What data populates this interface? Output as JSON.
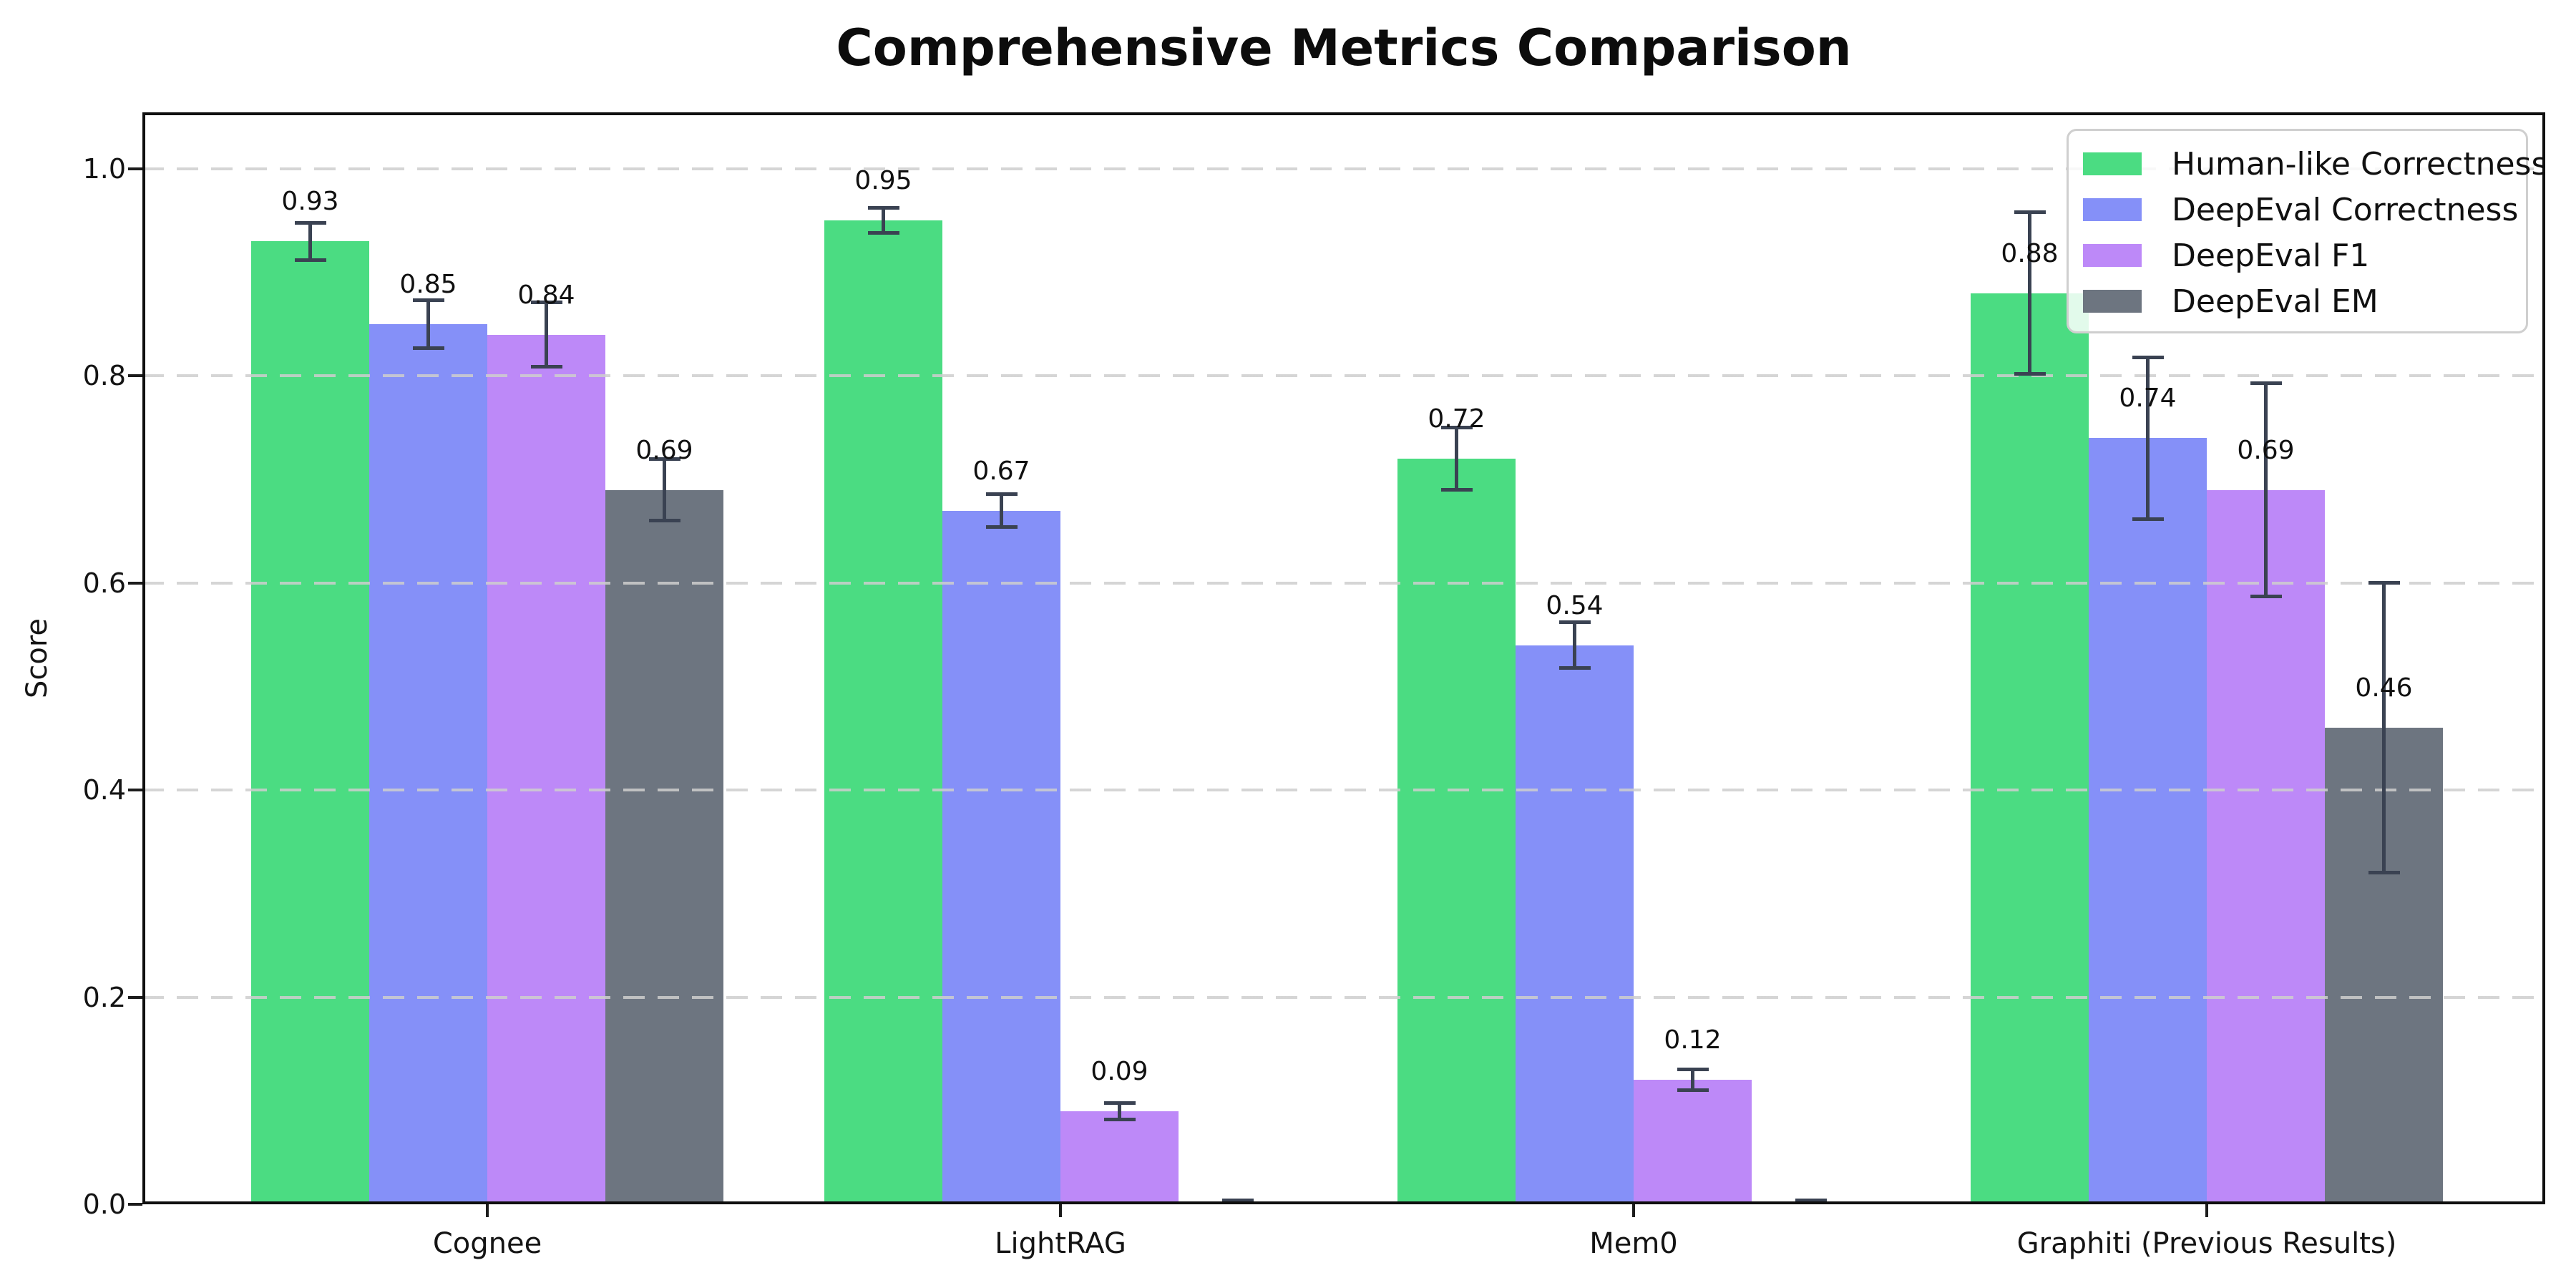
{
  "chart_data": {
    "type": "bar",
    "title": "Comprehensive Metrics Comparison",
    "xlabel": "",
    "ylabel": "Score",
    "ylim": [
      0,
      1.05
    ],
    "yticks": [
      0.0,
      0.2,
      0.4,
      0.6,
      0.8,
      1.0
    ],
    "grid": "horizontal dashed",
    "legend_position": "upper right",
    "categories": [
      "Cognee",
      "LightRAG",
      "Mem0",
      "Graphiti (Previous Results)"
    ],
    "series": [
      {
        "name": "Human-like Correctness",
        "color": "#4bdc82",
        "values": [
          0.93,
          0.95,
          0.72,
          0.88
        ],
        "errors": [
          0.018,
          0.012,
          0.03,
          0.078
        ],
        "bar_labels": [
          "0.93",
          "0.95",
          "0.72",
          "0.88"
        ]
      },
      {
        "name": "DeepEval Correctness",
        "color": "#8590f8",
        "values": [
          0.85,
          0.67,
          0.54,
          0.74
        ],
        "errors": [
          0.023,
          0.016,
          0.022,
          0.078
        ],
        "bar_labels": [
          "0.85",
          "0.67",
          "0.54",
          "0.74"
        ]
      },
      {
        "name": "DeepEval F1",
        "color": "#bd89f8",
        "values": [
          0.84,
          0.09,
          0.12,
          0.69
        ],
        "errors": [
          0.031,
          0.008,
          0.01,
          0.103
        ],
        "bar_labels": [
          "0.84",
          "0.09",
          "0.12",
          "0.69"
        ]
      },
      {
        "name": "DeepEval EM",
        "color": "#6d7580",
        "values": [
          0.69,
          0.0,
          0.0,
          0.46
        ],
        "errors": [
          0.03,
          0.004,
          0.004,
          0.14
        ],
        "bar_labels": [
          "0.69",
          "",
          "",
          "0.46"
        ]
      }
    ],
    "error_bar_color": "#3a4252",
    "axis_color": "#0f0f0f"
  }
}
